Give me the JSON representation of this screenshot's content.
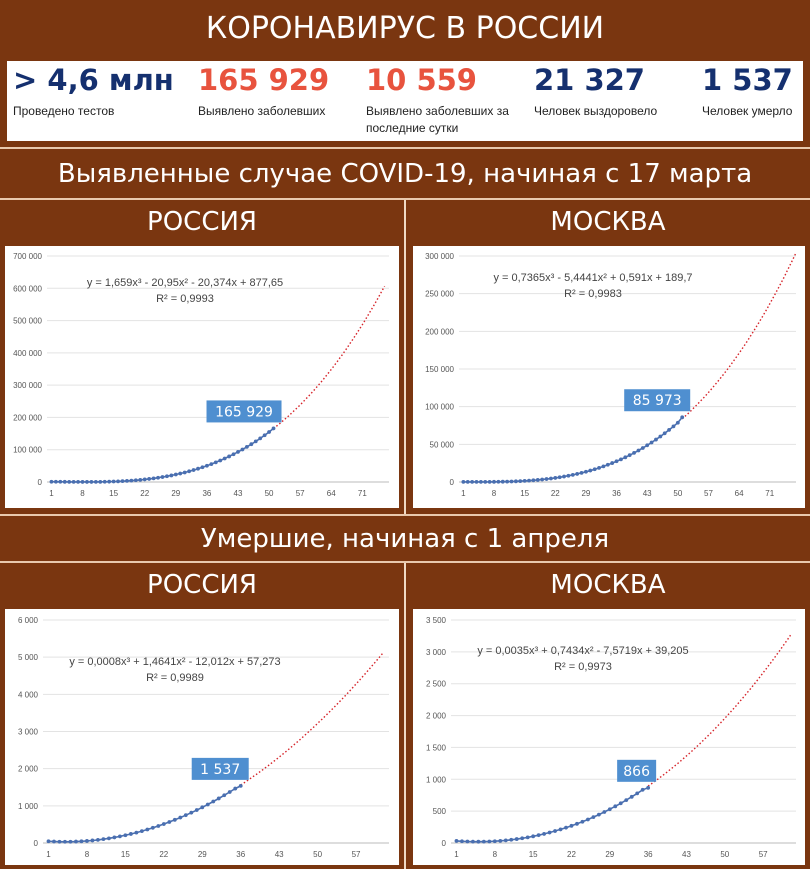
{
  "title": "КОРОНАВИРУС В РОССИИ",
  "stats": [
    {
      "value": "> 4,6 млн",
      "label": "Проведено тестов",
      "color": "#15306f"
    },
    {
      "value": "165 929",
      "label": "Выявлено заболевших",
      "color": "#e8533e"
    },
    {
      "value": "10 559",
      "label": "Выявлено заболевших за последние сутки",
      "color": "#e8533e"
    },
    {
      "value": "21 327",
      "label": "Человек выздоровело",
      "color": "#15306f"
    },
    {
      "value": "1 537",
      "label": "Человек умерло",
      "color": "#15306f"
    }
  ],
  "section1_title": "Выявленные случае COVID-19, начиная с 17 марта",
  "section2_title": "Умершие, начиная с 1 апреля",
  "region_labels": {
    "left": "РОССИЯ",
    "right": "МОСКВА"
  },
  "colors": {
    "background": "#7a3610",
    "data_points": "#4a6fb0",
    "trend": "#d6242a",
    "callout": "#4f8fd0"
  },
  "chart_data": [
    {
      "type": "scatter",
      "id": "cases-russia",
      "title": "",
      "equation": "y = 1,659x³ - 20,95x² - 20,374x + 877,65",
      "r2": "R² = 0,9993",
      "callout": "165 929",
      "coefficients": [
        1.659,
        -20.95,
        -20.374,
        877.65
      ],
      "x_last": 51,
      "trend_to": 76,
      "y_last": 165929,
      "xlim": [
        0,
        77
      ],
      "ylim": [
        0,
        700000
      ],
      "xticks": [
        1,
        8,
        15,
        22,
        29,
        36,
        43,
        50,
        57,
        64,
        71
      ],
      "yticks": [
        0,
        100000,
        200000,
        300000,
        400000,
        500000,
        600000,
        700000
      ],
      "ytick_labels": [
        "0",
        "100 000",
        "200 000",
        "300 000",
        "400 000",
        "500 000",
        "600 000",
        "700 000"
      ]
    },
    {
      "type": "scatter",
      "id": "cases-moscow",
      "title": "",
      "equation": "y = 0,7365x³ - 5,4441x² + 0,591x + 189,7",
      "r2": "R² = 0,9983",
      "callout": "85 973",
      "coefficients": [
        0.7365,
        -5.4441,
        0.591,
        189.7
      ],
      "x_last": 51,
      "trend_to": 77,
      "y_last": 85973,
      "xlim": [
        0,
        77
      ],
      "ylim": [
        0,
        300000
      ],
      "xticks": [
        1,
        8,
        15,
        22,
        29,
        36,
        43,
        50,
        57,
        64,
        71
      ],
      "yticks": [
        0,
        50000,
        100000,
        150000,
        200000,
        250000,
        300000
      ],
      "ytick_labels": [
        "0",
        "50 000",
        "100 000",
        "150 000",
        "200 000",
        "250 000",
        "300 000"
      ]
    },
    {
      "type": "scatter",
      "id": "deaths-russia",
      "title": "",
      "equation": "y = 0,0008x³ + 1,4641x² - 12,012x + 57,273",
      "r2": "R² = 0,9989",
      "callout": "1 537",
      "coefficients": [
        0.0008,
        1.4641,
        -12.012,
        57.273
      ],
      "x_last": 36,
      "trend_to": 62,
      "y_last": 1537,
      "xlim": [
        0,
        63
      ],
      "ylim": [
        0,
        6000
      ],
      "xticks": [
        1,
        8,
        15,
        22,
        29,
        36,
        43,
        50,
        57
      ],
      "yticks": [
        0,
        1000,
        2000,
        3000,
        4000,
        5000,
        6000
      ],
      "ytick_labels": [
        "0",
        "1 000",
        "2 000",
        "3 000",
        "4 000",
        "5 000",
        "6 000"
      ]
    },
    {
      "type": "scatter",
      "id": "deaths-moscow",
      "title": "",
      "equation": "y = 0,0035x³ + 0,7434x² - 7,5719x + 39,205",
      "r2": "R² = 0,9973",
      "callout": "866",
      "coefficients": [
        0.0035,
        0.7434,
        -7.5719,
        39.205
      ],
      "x_last": 36,
      "trend_to": 62,
      "y_last": 866,
      "xlim": [
        0,
        63
      ],
      "ylim": [
        0,
        3500
      ],
      "xticks": [
        1,
        8,
        15,
        22,
        29,
        36,
        43,
        50,
        57
      ],
      "yticks": [
        0,
        500,
        1000,
        1500,
        2000,
        2500,
        3000,
        3500
      ],
      "ytick_labels": [
        "0",
        "500",
        "1 000",
        "1 500",
        "2 000",
        "2 500",
        "3 000",
        "3 500"
      ]
    }
  ]
}
